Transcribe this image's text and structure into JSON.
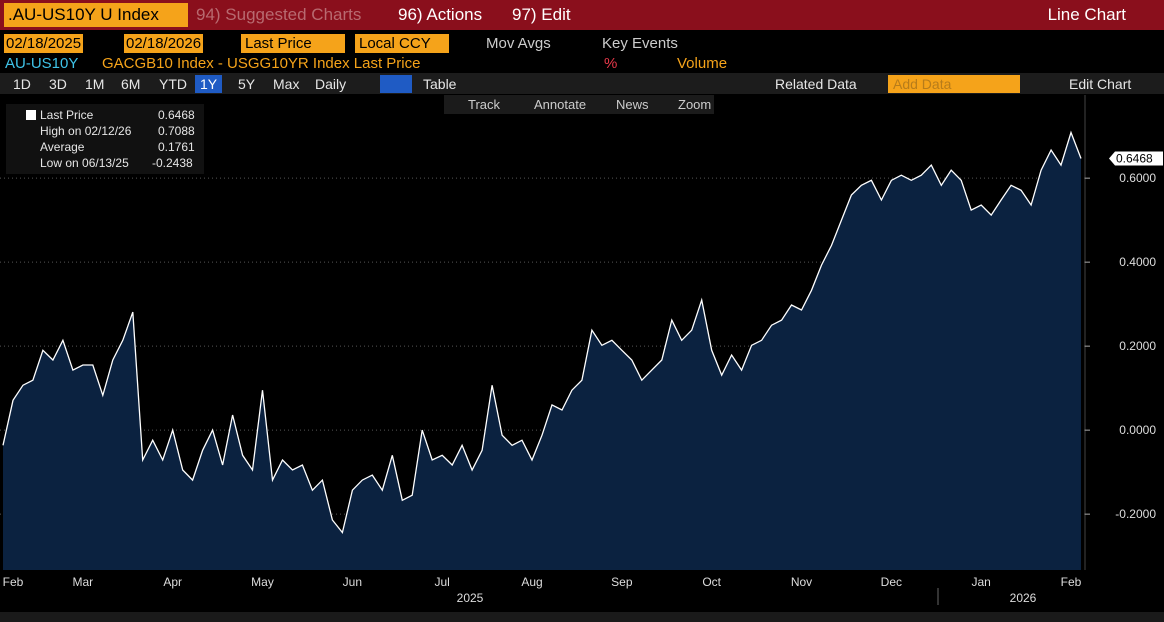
{
  "toolbar": {
    "security": ".AU-US10Y U Index",
    "suggested": "94) Suggested Charts",
    "actions": "96) Actions",
    "edit": "97) Edit",
    "chart_type": "Line Chart"
  },
  "controls": {
    "start_date": "02/18/2025",
    "end_date": "02/18/2026",
    "field": "Last Price",
    "currency": "Local CCY",
    "mov_avgs": "Mov Avgs",
    "key_events": "Key Events"
  },
  "legend_row": {
    "ticker": "AU-US10Y",
    "description": "GACGB10 Index - USGG10YR Index Last Price",
    "unit": "%",
    "volume": "Volume"
  },
  "periods": [
    "1D",
    "3D",
    "1M",
    "6M",
    "YTD",
    "1Y",
    "5Y",
    "Max"
  ],
  "frequency": "Daily",
  "table": "Table",
  "related": "Related Data",
  "add_data": "Add Data",
  "edit_chart": "Edit Chart",
  "chart_tools": [
    "Track",
    "Annotate",
    "News",
    "Zoom"
  ],
  "stats": [
    {
      "label": "Last Price",
      "value": 0.6468
    },
    {
      "label": "High on 02/12/26",
      "value": 0.7088
    },
    {
      "label": "Average",
      "value": 0.1761
    },
    {
      "label": "Low on 06/13/25",
      "value": -0.2438
    }
  ],
  "chart_data": {
    "type": "area",
    "categories": [
      null,
      "Feb",
      null,
      null,
      null,
      null,
      null,
      null,
      "Mar",
      null,
      null,
      null,
      null,
      null,
      null,
      null,
      null,
      "Apr",
      null,
      null,
      null,
      null,
      null,
      null,
      null,
      null,
      "May",
      null,
      null,
      null,
      null,
      null,
      null,
      null,
      null,
      "Jun",
      null,
      null,
      null,
      null,
      null,
      null,
      null,
      null,
      "Jul",
      null,
      null,
      null,
      null,
      null,
      null,
      null,
      null,
      "Aug",
      null,
      null,
      null,
      null,
      null,
      null,
      null,
      null,
      "Sep",
      null,
      null,
      null,
      null,
      null,
      null,
      null,
      null,
      "Oct",
      null,
      null,
      null,
      null,
      null,
      null,
      null,
      null,
      "Nov",
      null,
      null,
      null,
      null,
      null,
      null,
      null,
      null,
      "Dec",
      null,
      null,
      null,
      null,
      null,
      null,
      null,
      null,
      "Jan",
      null,
      null,
      null,
      null,
      null,
      null,
      null,
      null,
      "Feb",
      null
    ],
    "x_group_labels": [
      "2025",
      "2026"
    ],
    "series": [
      {
        "name": "AU-US10Y",
        "color": "#ffffff",
        "fill": "#0b2240",
        "values": [
          -0.036,
          0.071,
          0.107,
          0.119,
          0.19,
          0.167,
          0.214,
          0.143,
          0.155,
          0.155,
          0.083,
          0.167,
          0.214,
          0.281,
          -0.071,
          -0.024,
          -0.071,
          0,
          -0.095,
          -0.119,
          -0.048,
          0,
          -0.083,
          0.036,
          -0.06,
          -0.095,
          0.095,
          -0.119,
          -0.071,
          -0.095,
          -0.083,
          -0.143,
          -0.119,
          -0.214,
          -0.2438,
          -0.143,
          -0.119,
          -0.107,
          -0.143,
          -0.06,
          -0.167,
          -0.155,
          0,
          -0.071,
          -0.06,
          -0.083,
          -0.036,
          -0.095,
          -0.048,
          0.107,
          -0.012,
          -0.036,
          -0.024,
          -0.071,
          -0.012,
          0.06,
          0.048,
          0.095,
          0.119,
          0.238,
          0.202,
          0.214,
          0.19,
          0.167,
          0.119,
          0.143,
          0.167,
          0.262,
          0.214,
          0.238,
          0.31,
          0.19,
          0.131,
          0.179,
          0.143,
          0.202,
          0.214,
          0.25,
          0.262,
          0.298,
          0.286,
          0.333,
          0.393,
          0.44,
          0.5,
          0.56,
          0.583,
          0.595,
          0.548,
          0.595,
          0.607,
          0.595,
          0.607,
          0.631,
          0.583,
          0.619,
          0.595,
          0.524,
          0.536,
          0.512,
          0.548,
          0.583,
          0.571,
          0.536,
          0.619,
          0.667,
          0.631,
          0.7088,
          0.6468
        ]
      }
    ],
    "ylim": [
      -0.333,
      0.798
    ],
    "yticks": [
      {
        "value": -0.2,
        "label": "-0.2000"
      },
      {
        "value": 0,
        "label": "0.0000"
      },
      {
        "value": 0.2,
        "label": "0.2000"
      },
      {
        "value": 0.4,
        "label": "0.4000"
      },
      {
        "value": 0.6,
        "label": "0.6000"
      }
    ],
    "grid": true
  }
}
